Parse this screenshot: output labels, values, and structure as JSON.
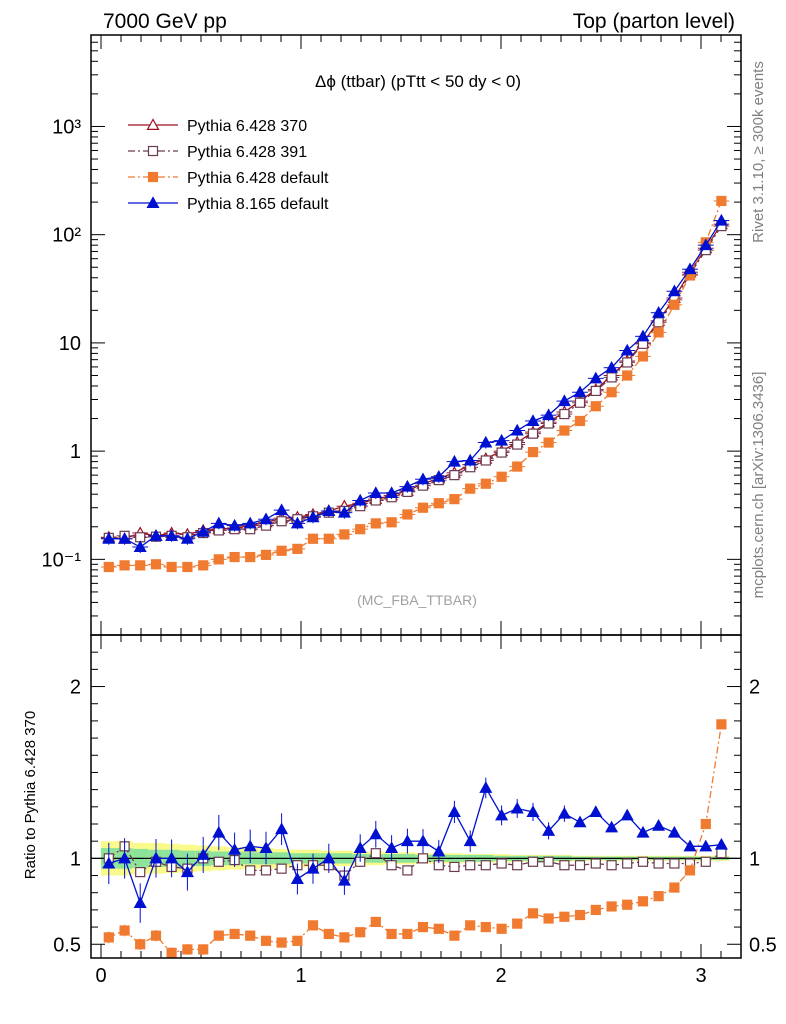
{
  "header": {
    "left": "7000 GeV pp",
    "right": "Top (parton level)"
  },
  "side_labels": {
    "rivet": "Rivet 3.1.10, ≥ 300k events",
    "mcplots": "mcplots.cern.ch [arXiv:1306.3436]"
  },
  "chart_data": [
    {
      "type": "line",
      "title": "Δϕ (ttbar) (pTtt < 50 dy < 0)",
      "watermark": "(MC_FBA_TTBAR)",
      "xlabel": "",
      "ylabel": "",
      "yscale": "log",
      "xlim": [
        -0.05,
        3.2
      ],
      "ylim": [
        0.02,
        7000
      ],
      "y_ticks": [
        {
          "v": 0.1,
          "label": "10⁻¹"
        },
        {
          "v": 1,
          "label": "1"
        },
        {
          "v": 10,
          "label": "10"
        },
        {
          "v": 100,
          "label": "10²"
        },
        {
          "v": 1000,
          "label": "10³"
        }
      ],
      "legend_position": "top-left",
      "x": [
        0.039,
        0.118,
        0.196,
        0.275,
        0.353,
        0.432,
        0.511,
        0.589,
        0.668,
        0.746,
        0.825,
        0.903,
        0.982,
        1.06,
        1.139,
        1.217,
        1.296,
        1.374,
        1.453,
        1.532,
        1.61,
        1.689,
        1.767,
        1.846,
        1.924,
        2.003,
        2.081,
        2.16,
        2.238,
        2.317,
        2.395,
        2.474,
        2.553,
        2.631,
        2.71,
        2.788,
        2.867,
        2.945,
        3.024,
        3.102
      ],
      "series": [
        {
          "name": "Pythia 6.428 370",
          "color": "#a01020",
          "marker": "triangle-open",
          "dash": "solid",
          "values": [
            0.16,
            0.155,
            0.175,
            0.165,
            0.175,
            0.17,
            0.185,
            0.19,
            0.195,
            0.205,
            0.22,
            0.24,
            0.245,
            0.26,
            0.28,
            0.31,
            0.33,
            0.36,
            0.39,
            0.43,
            0.5,
            0.56,
            0.63,
            0.75,
            0.85,
            1.0,
            1.2,
            1.5,
            1.85,
            2.3,
            2.9,
            3.7,
            5.0,
            6.8,
            10.0,
            16.0,
            26.0,
            45.0,
            75.0,
            125.0
          ]
        },
        {
          "name": "Pythia 6.428 391",
          "color": "#6b3a50",
          "marker": "square-open",
          "dash": "dashdot",
          "values": [
            0.158,
            0.165,
            0.16,
            0.162,
            0.165,
            0.16,
            0.175,
            0.185,
            0.19,
            0.19,
            0.205,
            0.225,
            0.235,
            0.25,
            0.27,
            0.28,
            0.31,
            0.35,
            0.375,
            0.42,
            0.48,
            0.54,
            0.6,
            0.71,
            0.82,
            0.97,
            1.15,
            1.45,
            1.8,
            2.2,
            2.8,
            3.6,
            4.8,
            6.6,
            9.8,
            15.5,
            25.0,
            43.0,
            72.0,
            120.0
          ]
        },
        {
          "name": "Pythia 6.428 default",
          "color": "#f07a30",
          "marker": "square-filled",
          "dash": "dashdot",
          "values": [
            0.085,
            0.088,
            0.088,
            0.09,
            0.085,
            0.085,
            0.088,
            0.1,
            0.105,
            0.105,
            0.11,
            0.12,
            0.125,
            0.155,
            0.155,
            0.17,
            0.19,
            0.215,
            0.22,
            0.26,
            0.3,
            0.33,
            0.36,
            0.45,
            0.5,
            0.58,
            0.72,
            0.98,
            1.2,
            1.55,
            1.9,
            2.6,
            3.5,
            5.0,
            7.5,
            12.5,
            22.5,
            42.0,
            85.0,
            205.0
          ]
        },
        {
          "name": "Pythia 8.165 default",
          "color": "#0010d0",
          "marker": "triangle-filled",
          "dash": "solid",
          "values": [
            0.155,
            0.155,
            0.13,
            0.165,
            0.165,
            0.155,
            0.18,
            0.215,
            0.205,
            0.215,
            0.235,
            0.285,
            0.215,
            0.245,
            0.28,
            0.27,
            0.35,
            0.41,
            0.41,
            0.47,
            0.55,
            0.58,
            0.8,
            0.82,
            1.2,
            1.25,
            1.55,
            1.9,
            2.15,
            2.9,
            3.5,
            4.7,
            5.9,
            8.5,
            11.5,
            19.0,
            30.0,
            48.0,
            80.0,
            135.0
          ]
        }
      ]
    },
    {
      "type": "line",
      "title": "",
      "xlabel": "",
      "ylabel": "Ratio to Pythia 6.428 370",
      "ylim": [
        0.42,
        2.3
      ],
      "x_ticks": [
        0,
        1,
        2,
        3
      ],
      "y_ticks": [
        {
          "v": 0.5,
          "label": "0.5"
        },
        {
          "v": 1,
          "label": "1"
        },
        {
          "v": 2,
          "label": "2"
        }
      ],
      "reference_line": 1,
      "band": {
        "inner_color": "#8de39a",
        "outer_color": "#fafa8a",
        "inner": [
          0.06,
          0.06,
          0.055,
          0.05,
          0.05,
          0.045,
          0.045,
          0.04,
          0.04,
          0.035,
          0.035,
          0.035,
          0.03,
          0.03,
          0.03,
          0.03,
          0.025,
          0.025,
          0.025,
          0.025,
          0.02,
          0.02,
          0.02,
          0.02,
          0.02,
          0.015,
          0.015,
          0.015,
          0.015,
          0.015,
          0.01,
          0.01,
          0.01,
          0.01,
          0.01,
          0.01,
          0.01,
          0.01,
          0.01,
          0.01
        ],
        "outer": [
          0.1,
          0.1,
          0.09,
          0.09,
          0.085,
          0.08,
          0.075,
          0.07,
          0.065,
          0.06,
          0.06,
          0.055,
          0.05,
          0.05,
          0.045,
          0.045,
          0.04,
          0.04,
          0.035,
          0.035,
          0.03,
          0.03,
          0.03,
          0.025,
          0.025,
          0.025,
          0.02,
          0.02,
          0.02,
          0.02,
          0.015,
          0.015,
          0.015,
          0.015,
          0.015,
          0.015,
          0.015,
          0.015,
          0.015,
          0.015
        ]
      },
      "series": [
        {
          "name": "Pythia 6.428 391",
          "color": "#6b3a50",
          "marker": "square-open",
          "dash": "dashdot",
          "values": [
            1.0,
            1.07,
            0.92,
            0.98,
            0.95,
            0.94,
            1.0,
            0.98,
            0.99,
            0.93,
            0.93,
            0.94,
            0.96,
            0.96,
            0.96,
            0.9,
            0.98,
            1.03,
            0.96,
            0.93,
            1.0,
            0.96,
            0.95,
            0.96,
            0.96,
            0.97,
            0.96,
            0.98,
            0.98,
            0.96,
            0.96,
            0.97,
            0.96,
            0.97,
            0.98,
            0.97,
            0.97,
            0.97,
            0.98,
            1.03
          ]
        },
        {
          "name": "Pythia 6.428 default",
          "color": "#f07a30",
          "marker": "square-filled",
          "dash": "dashdot",
          "values": [
            0.54,
            0.58,
            0.5,
            0.55,
            0.45,
            0.47,
            0.47,
            0.55,
            0.56,
            0.55,
            0.52,
            0.51,
            0.52,
            0.61,
            0.56,
            0.54,
            0.57,
            0.63,
            0.56,
            0.56,
            0.6,
            0.59,
            0.55,
            0.61,
            0.6,
            0.59,
            0.62,
            0.68,
            0.65,
            0.66,
            0.67,
            0.7,
            0.72,
            0.73,
            0.75,
            0.78,
            0.83,
            0.93,
            1.2,
            1.78
          ]
        },
        {
          "name": "Pythia 8.165 default",
          "color": "#0010d0",
          "marker": "triangle-filled",
          "dash": "solid",
          "values": [
            0.97,
            1.0,
            0.74,
            1.0,
            1.0,
            0.92,
            1.02,
            1.15,
            1.05,
            1.07,
            1.06,
            1.17,
            0.88,
            0.94,
            1.0,
            0.87,
            1.06,
            1.14,
            1.06,
            1.1,
            1.1,
            1.04,
            1.27,
            1.1,
            1.41,
            1.25,
            1.29,
            1.27,
            1.16,
            1.26,
            1.21,
            1.27,
            1.18,
            1.25,
            1.15,
            1.19,
            1.15,
            1.07,
            1.07,
            1.08
          ]
        }
      ]
    }
  ]
}
